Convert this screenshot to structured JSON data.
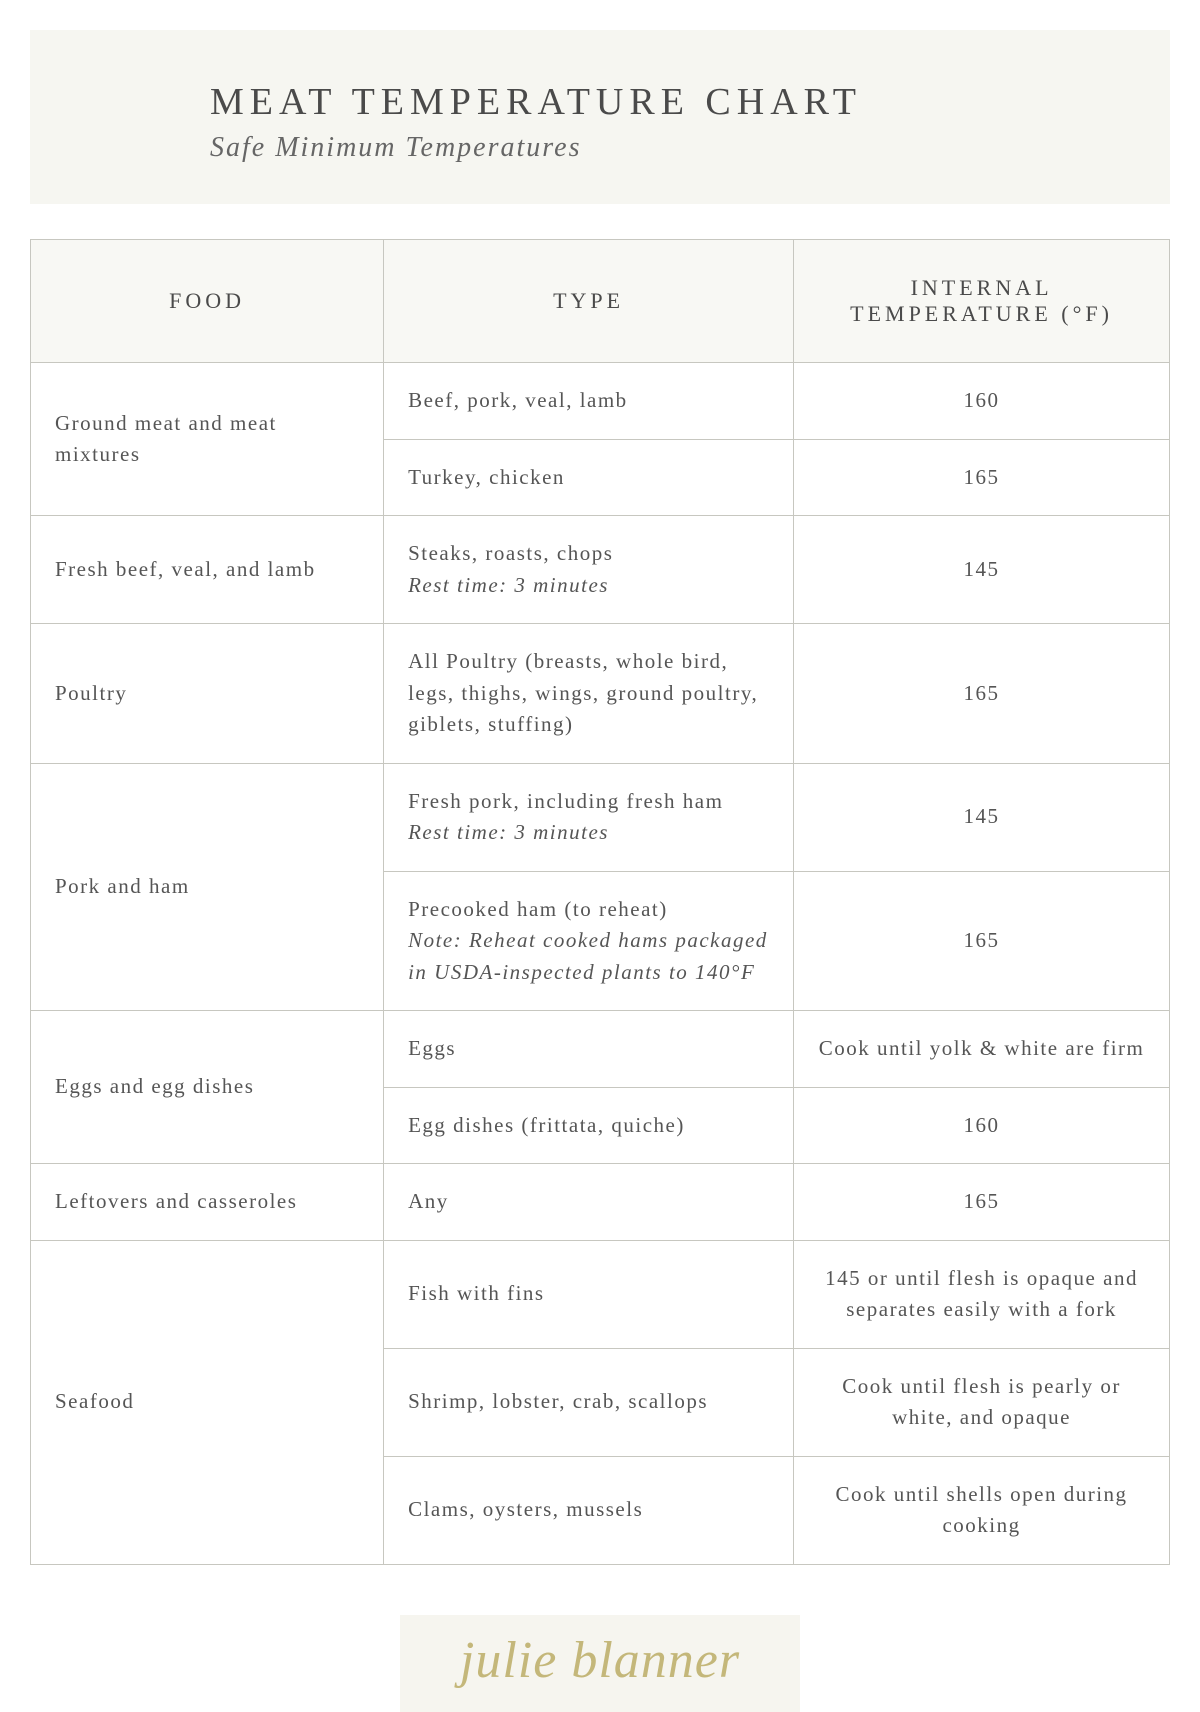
{
  "header": {
    "title": "MEAT TEMPERATURE CHART",
    "subtitle": "Safe Minimum Temperatures"
  },
  "columns": {
    "food": "FOOD",
    "type": "TYPE",
    "temp": "INTERNAL TEMPERATURE (°F)"
  },
  "rows": {
    "ground_meat": {
      "food": "Ground meat and meat mixtures",
      "r1_type": "Beef, pork, veal, lamb",
      "r1_temp": "160",
      "r2_type": "Turkey, chicken",
      "r2_temp": "165"
    },
    "fresh_beef": {
      "food": "Fresh beef, veal, and lamb",
      "type_main": "Steaks, roasts, chops",
      "type_note": "Rest time: 3 minutes",
      "temp": "145"
    },
    "poultry": {
      "food": "Poultry",
      "type": "All Poultry (breasts, whole bird, legs, thighs, wings, ground poultry, giblets, stuffing)",
      "temp": "165"
    },
    "pork_ham": {
      "food": "Pork and ham",
      "r1_type_main": "Fresh pork, including fresh ham",
      "r1_type_note": "Rest time: 3 minutes",
      "r1_temp": "145",
      "r2_type_main": "Precooked ham (to reheat)",
      "r2_type_note": "Note: Reheat cooked hams packaged in USDA-inspected plants to 140°F",
      "r2_temp": "165"
    },
    "eggs": {
      "food": "Eggs and egg dishes",
      "r1_type": "Eggs",
      "r1_temp": "Cook until yolk & white are firm",
      "r2_type": "Egg dishes (frittata, quiche)",
      "r2_temp": "160"
    },
    "leftovers": {
      "food": "Leftovers and casseroles",
      "type": "Any",
      "temp": "165"
    },
    "seafood": {
      "food": "Seafood",
      "r1_type": "Fish with fins",
      "r1_temp": "145 or until flesh is opaque and separates easily with a fork",
      "r2_type": "Shrimp, lobster, crab, scallops",
      "r2_temp": "Cook until flesh is pearly or white, and opaque",
      "r3_type": "Clams, oysters, mussels",
      "r3_temp": "Cook until shells open during cooking"
    }
  },
  "signature": "julie blanner",
  "colors": {
    "header_bg": "#f6f6f1",
    "border": "#c7c7c0",
    "text": "#4a4a4a",
    "signature": "#c4b77a"
  }
}
